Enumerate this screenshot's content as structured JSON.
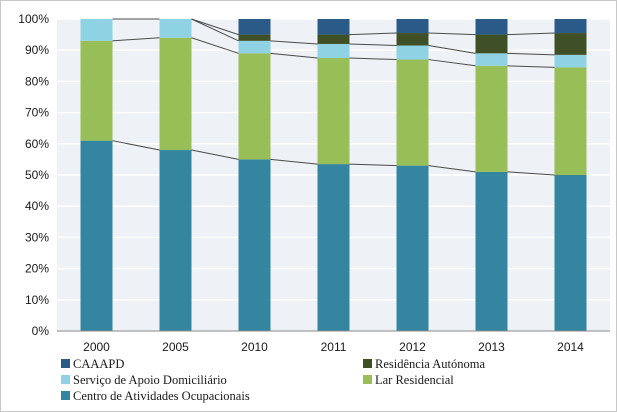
{
  "chart_data": {
    "type": "bar",
    "stacked": true,
    "categories": [
      "2000",
      "2005",
      "2010",
      "2011",
      "2012",
      "2013",
      "2014"
    ],
    "series": [
      {
        "name": "Centro de Atividades Ocupacionais",
        "color": "#3485a0",
        "values": [
          61,
          58,
          55,
          53.5,
          53,
          51,
          50
        ]
      },
      {
        "name": "Lar Residencial",
        "color": "#97be57",
        "values": [
          32,
          36,
          34,
          34,
          34,
          34,
          34.5
        ]
      },
      {
        "name": "Serviço de Apoio Domiciliário",
        "color": "#8fd2e4",
        "values": [
          7,
          6,
          4,
          4.5,
          4.5,
          4,
          4
        ]
      },
      {
        "name": "Residência Autónoma",
        "color": "#3f5026",
        "values": [
          0,
          0,
          2,
          3,
          4,
          6,
          7
        ]
      },
      {
        "name": "CAAAPD",
        "color": "#2a5a87",
        "values": [
          0,
          0,
          5,
          5,
          4.5,
          5,
          4.5
        ]
      }
    ],
    "ylim": [
      0,
      100
    ],
    "y_ticks": [
      "0%",
      "10%",
      "20%",
      "30%",
      "40%",
      "50%",
      "60%",
      "70%",
      "80%",
      "90%",
      "100%"
    ],
    "grid": true,
    "connector_lines": true,
    "legend_position": "bottom",
    "legend": [
      {
        "name": "CAAAPD",
        "color": "#2a5a87"
      },
      {
        "name": "Residência Autónoma",
        "color": "#3f5026"
      },
      {
        "name": "Serviço de Apoio Domiciliário",
        "color": "#8fd2e4"
      },
      {
        "name": "Lar Residencial",
        "color": "#97be57"
      },
      {
        "name": "Centro de Atividades Ocupacionais",
        "color": "#3485a0"
      }
    ],
    "title": "",
    "xlabel": "",
    "ylabel": "",
    "plot_background": "#eef2f6",
    "gridline_color": "#ffffff"
  }
}
